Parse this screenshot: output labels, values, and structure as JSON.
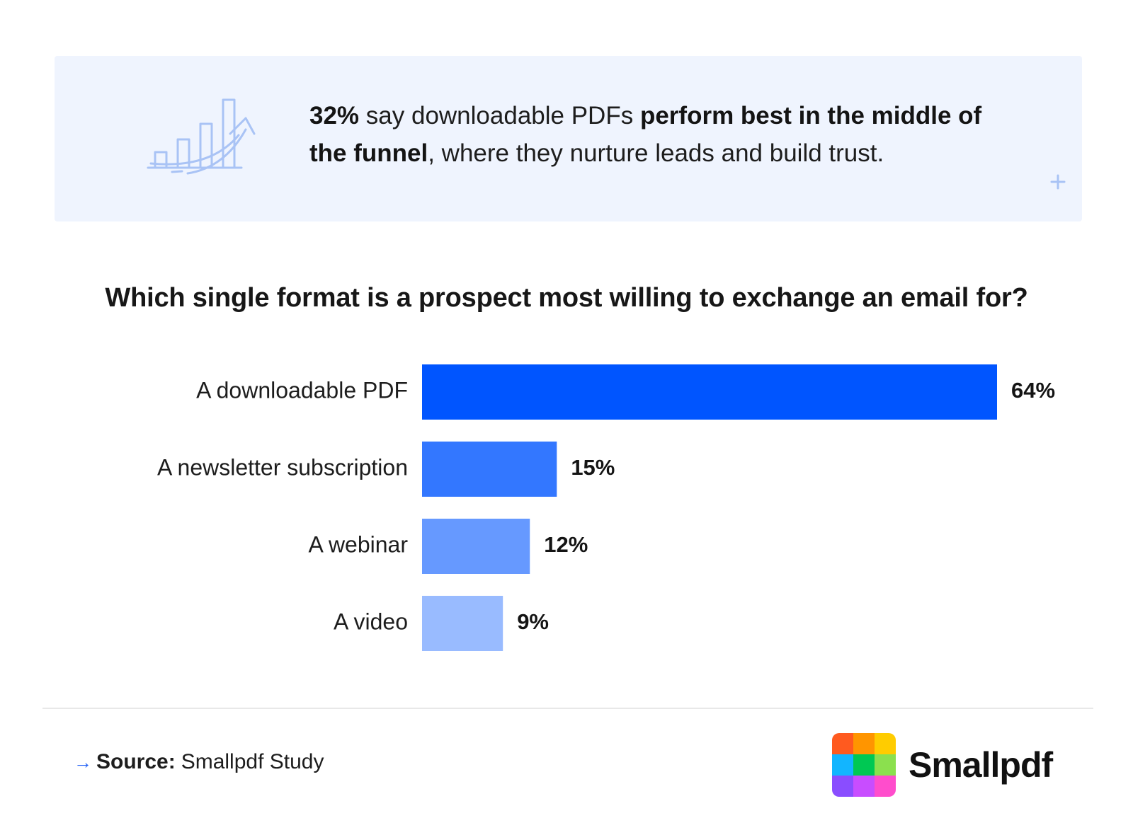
{
  "callout": {
    "text_parts": [
      {
        "text": "32%",
        "bold": true
      },
      {
        "text": " say downloadable PDFs ",
        "bold": false
      },
      {
        "text": "perform best in the middle of the funnel",
        "bold": true
      },
      {
        "text": ", where they nurture leads and build trust.",
        "bold": false
      }
    ],
    "icon": "growth-bar-chart-icon",
    "plus_icon": "plus-icon"
  },
  "chart_data": {
    "type": "bar",
    "orientation": "horizontal",
    "title": "Which single format is a prospect most willing to exchange an email for?",
    "categories": [
      "A downloadable PDF",
      "A newsletter subscription",
      "A webinar",
      "A video"
    ],
    "values": [
      64,
      15,
      12,
      9
    ],
    "value_labels": [
      "64%",
      "15%",
      "12%",
      "9%"
    ],
    "colors": [
      "#0055ff",
      "#3377ff",
      "#6699ff",
      "#99bbff"
    ],
    "xlim": [
      0,
      64
    ],
    "grid": false
  },
  "footer": {
    "source_label": "Source:",
    "source_value": "Smallpdf Study",
    "arrow_icon": "arrow-right-icon"
  },
  "logo": {
    "wordmark": "Smallpdf",
    "grid_colors": [
      "#ff5a1f",
      "#ff9500",
      "#ffcc00",
      "#12b5ff",
      "#00c853",
      "#8be04e",
      "#8a4dff",
      "#c84dff",
      "#ff4dcc"
    ]
  }
}
